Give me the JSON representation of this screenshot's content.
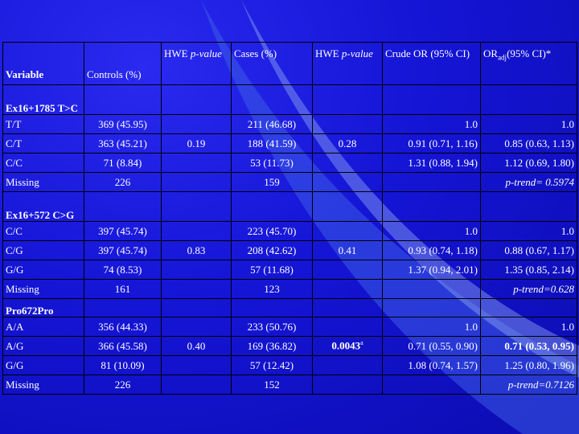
{
  "headers": {
    "variable": "Variable",
    "controls": "Controls (%)",
    "hwe1_prefix": "HWE ",
    "hwe1_italic": "p-value",
    "cases": "Cases (%)",
    "hwe2_prefix": "HWE ",
    "hwe2_italic": "p-value",
    "crude_or": "Crude OR (95% CI)",
    "oradj_prefix": "OR",
    "oradj_sub": "adj",
    "oradj_suffix": "(95% CI)*"
  },
  "groups": [
    {
      "title": "Ex16+1785 T>C",
      "rows": [
        {
          "genotype": "T/T",
          "controls": "369 (45.95)",
          "cases": "211 (46.68)",
          "crude": "1.0",
          "adj": "1.0"
        },
        {
          "genotype": "C/T",
          "controls": "363 (45.21)",
          "hwe1": "0.19",
          "cases": "188 (41.59)",
          "hwe2": "0.28",
          "crude": "0.91 (0.71, 1.16)",
          "adj": "0.85 (0.63, 1.13)"
        },
        {
          "genotype": "C/C",
          "controls": "71 (8.84)",
          "cases": "53 (11.73)",
          "crude": "1.31 (0.88, 1.94)",
          "adj": "1.12 (0.69, 1.80)"
        },
        {
          "genotype": "Missing",
          "controls": "226",
          "cases": "159",
          "crude": "",
          "adj": "p-trend= 0.5974"
        }
      ]
    },
    {
      "title": "Ex16+572 C>G",
      "rows": [
        {
          "genotype": "C/C",
          "controls": "397 (45.74)",
          "cases": "223 (45.70)",
          "crude": "1.0",
          "adj": "1.0"
        },
        {
          "genotype": "C/G",
          "controls": "397 (45.74)",
          "hwe1": "0.83",
          "cases": "208 (42.62)",
          "hwe2": "0.41",
          "crude": "0.93 (0.74, 1.18)",
          "adj": "0.88 (0.67, 1.17)"
        },
        {
          "genotype": "G/G",
          "controls": "74 (8.53)",
          "cases": "57 (11.68)",
          "crude": "1.37 (0.94, 2.01)",
          "adj": "1.35 (0.85, 2.14)"
        },
        {
          "genotype": "Missing",
          "controls": "161",
          "cases": "123",
          "crude": "",
          "adj": "p-trend=0.628"
        }
      ]
    },
    {
      "title": "Pro672Pro",
      "rows": [
        {
          "genotype": "A/A",
          "controls": "356 (44.33)",
          "cases": "233 (50.76)",
          "crude": "1.0",
          "adj": "1.0"
        },
        {
          "genotype": "A/G",
          "controls": "366 (45.58)",
          "hwe1": "0.40",
          "cases": "169 (36.82)",
          "hwe2": "0.0043",
          "hwe2_sup": "a",
          "crude": "0.71 (0.55, 0.90)",
          "adj": "0.71 (0.53, 0.95)"
        },
        {
          "genotype": "G/G",
          "controls": "81 (10.09)",
          "cases": "57 (12.42)",
          "crude": "1.08 (0.74, 1.57)",
          "adj": "1.25 (0.80, 1.96)"
        },
        {
          "genotype": "Missing",
          "controls": "226",
          "cases": "152",
          "crude": "",
          "adj": "p-trend=0.7126"
        }
      ]
    }
  ]
}
